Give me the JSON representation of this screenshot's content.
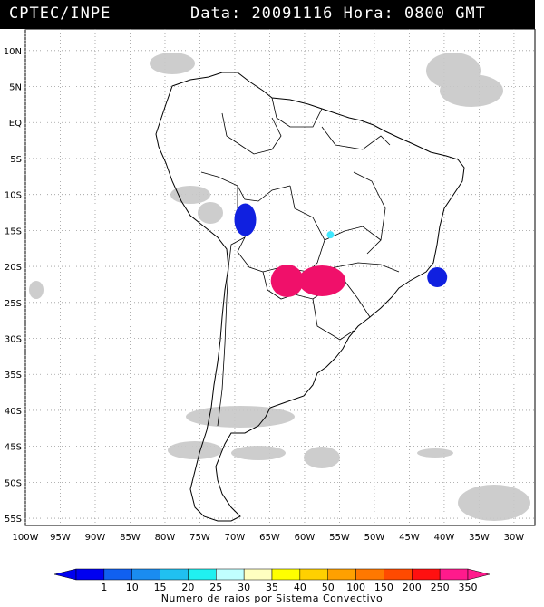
{
  "header": {
    "source": "CPTEC/INPE",
    "data_label": "Data:",
    "date": "20091116",
    "hora_label": "Hora:",
    "time": "0800 GMT"
  },
  "map": {
    "lat_ticks": [
      "10N",
      "5N",
      "EQ",
      "5S",
      "10S",
      "15S",
      "20S",
      "25S",
      "30S",
      "35S",
      "40S",
      "45S",
      "50S",
      "55S"
    ],
    "lat_values": [
      10,
      5,
      0,
      -5,
      -10,
      -15,
      -20,
      -25,
      -30,
      -35,
      -40,
      -45,
      -50,
      -55
    ],
    "lon_ticks": [
      "100W",
      "95W",
      "90W",
      "85W",
      "80W",
      "75W",
      "70W",
      "65W",
      "60W",
      "55W",
      "50W",
      "45W",
      "40W",
      "35W",
      "30W"
    ],
    "lon_values": [
      -100,
      -95,
      -90,
      -85,
      -80,
      -75,
      -70,
      -65,
      -60,
      -55,
      -50,
      -45,
      -40,
      -35,
      -30
    ],
    "extent": {
      "lon": [
        -100,
        -27
      ],
      "lat": [
        -56,
        13
      ]
    },
    "convective_systems": [
      {
        "name": "peru-bolivia-cluster",
        "lon": -68.5,
        "lat": -13.5,
        "color": "#1020e0"
      },
      {
        "name": "central-brazil-cell",
        "lon": -56.3,
        "lat": -15.6,
        "color": "#40e8ff"
      },
      {
        "name": "paraguay-west-cluster",
        "lon": -62.5,
        "lat": -22.0,
        "color": "#f0106a"
      },
      {
        "name": "paraguay-east-cluster",
        "lon": -57.5,
        "lat": -22.0,
        "color": "#f0106a"
      },
      {
        "name": "southeast-brazil-cluster",
        "lon": -41.0,
        "lat": -21.5,
        "color": "#1020e0"
      }
    ]
  },
  "colorbar": {
    "labels": [
      "1",
      "10",
      "15",
      "20",
      "25",
      "30",
      "35",
      "40",
      "50",
      "100",
      "150",
      "200",
      "250",
      "350"
    ],
    "colors": [
      "#0000f0",
      "#1060f0",
      "#1a8cf0",
      "#20c0f0",
      "#20f0f0",
      "#c0ffff",
      "#ffffc0",
      "#ffff00",
      "#ffd000",
      "#ffa000",
      "#ff7800",
      "#ff4a00",
      "#ff1010",
      "#ff1a8c"
    ],
    "title": "Numero de raios por Sistema Convectivo"
  }
}
